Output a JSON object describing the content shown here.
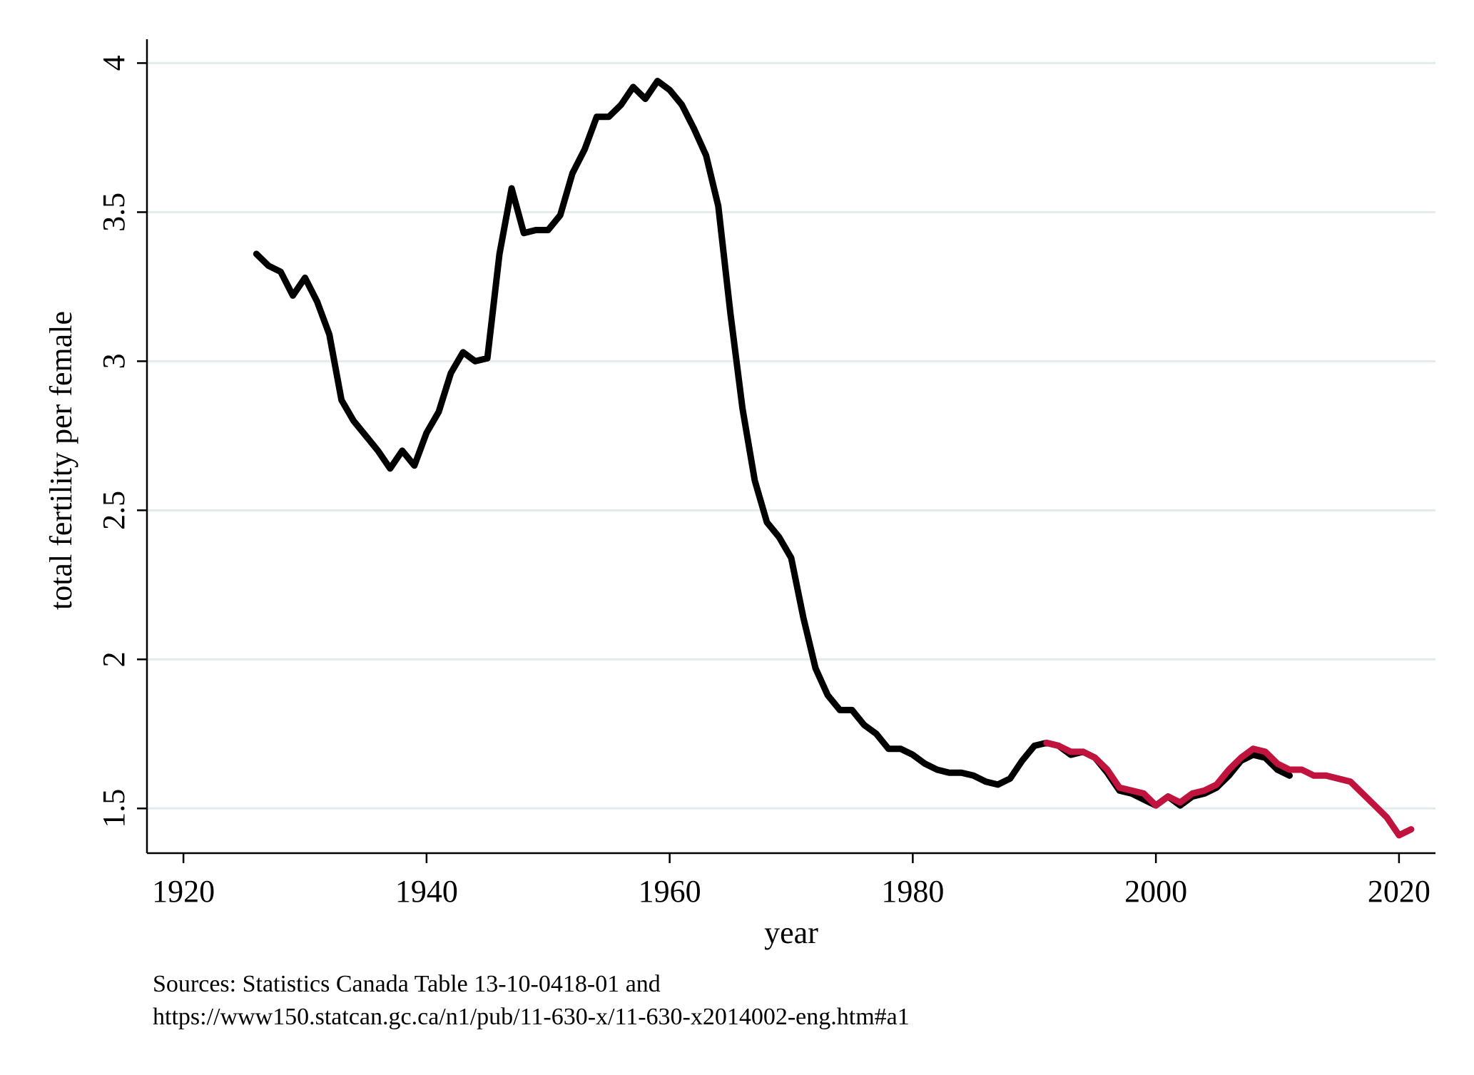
{
  "chart_data": {
    "type": "line",
    "title": "",
    "xlabel": "year",
    "ylabel": "total fertility per female",
    "xlim": [
      1917,
      2023
    ],
    "ylim": [
      1.35,
      4.08
    ],
    "xticks": [
      1920,
      1940,
      1960,
      1980,
      2000,
      2020
    ],
    "yticks": [
      1.5,
      2,
      2.5,
      3,
      3.5,
      4
    ],
    "xtick_labels": [
      "1920",
      "1940",
      "1960",
      "1980",
      "2000",
      "2020"
    ],
    "ytick_labels": [
      "1.5",
      "2",
      "2.5",
      "3",
      "3.5",
      "4"
    ],
    "grid": "horizontal",
    "legend": "none",
    "notes": [
      "Sources: Statistics Canada Table 13-10-0418-01  and",
      "https://www150.statcan.gc.ca/n1/pub/11-630-x/11-630-x2014002-eng.htm#a1"
    ],
    "series": [
      {
        "color": "#000000",
        "x": [
          1926,
          1927,
          1928,
          1929,
          1930,
          1931,
          1932,
          1933,
          1934,
          1935,
          1936,
          1937,
          1938,
          1939,
          1940,
          1941,
          1942,
          1943,
          1944,
          1945,
          1946,
          1947,
          1948,
          1949,
          1950,
          1951,
          1952,
          1953,
          1954,
          1955,
          1956,
          1957,
          1958,
          1959,
          1960,
          1961,
          1962,
          1963,
          1964,
          1965,
          1966,
          1967,
          1968,
          1969,
          1970,
          1971,
          1972,
          1973,
          1974,
          1975,
          1976,
          1977,
          1978,
          1979,
          1980,
          1981,
          1982,
          1983,
          1984,
          1985,
          1986,
          1987,
          1988,
          1989,
          1990,
          1991,
          1992,
          1993,
          1994,
          1995,
          1996,
          1997,
          1998,
          1999,
          2000,
          2001,
          2002,
          2003,
          2004,
          2005,
          2006,
          2007,
          2008,
          2009,
          2010,
          2011
        ],
        "y": [
          3.36,
          3.32,
          3.3,
          3.22,
          3.28,
          3.2,
          3.09,
          2.87,
          2.8,
          2.75,
          2.7,
          2.64,
          2.7,
          2.65,
          2.76,
          2.83,
          2.96,
          3.03,
          3.0,
          3.01,
          3.36,
          3.58,
          3.43,
          3.44,
          3.44,
          3.49,
          3.63,
          3.71,
          3.82,
          3.82,
          3.86,
          3.92,
          3.88,
          3.94,
          3.91,
          3.86,
          3.78,
          3.69,
          3.52,
          3.16,
          2.84,
          2.6,
          2.46,
          2.41,
          2.34,
          2.14,
          1.97,
          1.88,
          1.83,
          1.83,
          1.78,
          1.75,
          1.7,
          1.7,
          1.68,
          1.65,
          1.63,
          1.62,
          1.62,
          1.61,
          1.59,
          1.58,
          1.6,
          1.66,
          1.71,
          1.72,
          1.71,
          1.68,
          1.69,
          1.67,
          1.62,
          1.56,
          1.55,
          1.53,
          1.51,
          1.54,
          1.51,
          1.54,
          1.55,
          1.57,
          1.61,
          1.66,
          1.68,
          1.67,
          1.63,
          1.61
        ]
      },
      {
        "color": "#c0133e",
        "x": [
          1991,
          1992,
          1993,
          1994,
          1995,
          1996,
          1997,
          1998,
          1999,
          2000,
          2001,
          2002,
          2003,
          2004,
          2005,
          2006,
          2007,
          2008,
          2009,
          2010,
          2011,
          2012,
          2013,
          2014,
          2015,
          2016,
          2017,
          2018,
          2019,
          2020,
          2021
        ],
        "y": [
          1.72,
          1.71,
          1.69,
          1.69,
          1.67,
          1.63,
          1.57,
          1.56,
          1.55,
          1.51,
          1.54,
          1.52,
          1.55,
          1.56,
          1.58,
          1.63,
          1.67,
          1.7,
          1.69,
          1.65,
          1.63,
          1.63,
          1.61,
          1.61,
          1.6,
          1.59,
          1.55,
          1.51,
          1.47,
          1.41,
          1.43
        ]
      }
    ]
  }
}
